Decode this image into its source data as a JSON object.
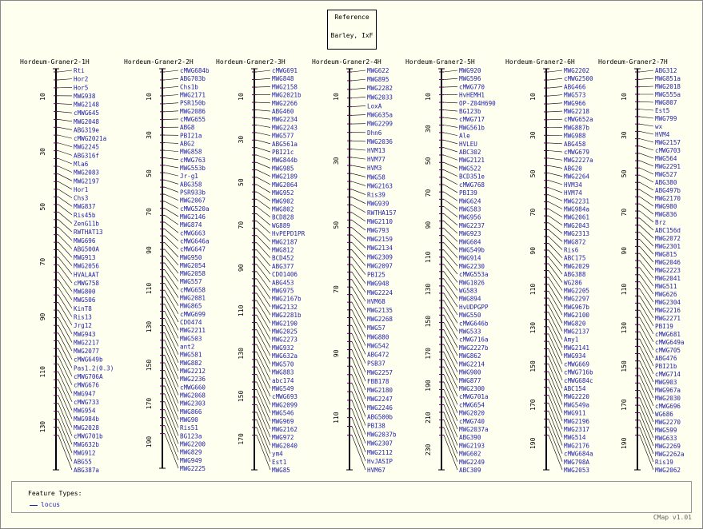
{
  "reference": {
    "label": "Reference",
    "map_set": "Barley, IxF"
  },
  "legend": {
    "title": "Feature Types:",
    "items": [
      {
        "label": "locus",
        "color": "#2222aa"
      }
    ]
  },
  "version": "CMap v1.01",
  "colors": {
    "feature_text": "#2222aa",
    "axis": "#000000",
    "tick": "#660066",
    "background": "#fffff0"
  },
  "chromosomes": [
    {
      "name": "Hordeum-Graner2-1H",
      "scale": {
        "ticks": [
          "10",
          "30",
          "50",
          "70",
          "90",
          "110",
          "130"
        ]
      },
      "features": [
        "Rti",
        "Hor2",
        "Hor5",
        "MWG938",
        "MWG2148",
        "cMWG645",
        "MWG2048",
        "ABG319e",
        "cMWG2021a",
        "MWG2245",
        "ABG316f",
        "Mla6",
        "MWG2083",
        "MWG2197",
        "Hor1",
        "Chs3",
        "MWG837",
        "Ris45b",
        "ZenG11b",
        "RWTHAT13",
        "MWG696",
        "ABG500A",
        "MWG913",
        "MWG2056",
        "HVALAAT",
        "cMWG758",
        "MWG800",
        "MWG506",
        "KinT8",
        "Ris13",
        "Jrg12",
        "MWG943",
        "MWG2217",
        "MWG2077",
        "cMWG649b",
        "Pas1.2(0.3)",
        "cMWG706A",
        "cMWG676",
        "MWG947",
        "cMWG733",
        "MWG954",
        "MWG984b",
        "MWG2028",
        "cMWG701b",
        "MWG632b",
        "MWG912",
        "ABG55",
        "ABG387a"
      ]
    },
    {
      "name": "Hordeum-Graner2-2H",
      "scale": {
        "ticks": [
          "10",
          "30",
          "50",
          "70",
          "90",
          "110",
          "130",
          "150",
          "170",
          "190"
        ]
      },
      "features": [
        "cMWG684b",
        "ABG703b",
        "Chs1b",
        "MWG2171",
        "PSR150b",
        "MWG2086",
        "cMWG655",
        "ABG8",
        "PBI21a",
        "ABG2",
        "MWG858",
        "cMWG763",
        "MWG553b",
        "Jr-g1",
        "ABG358",
        "PSR933b",
        "MWG2067",
        "cMWG520a",
        "MWG2146",
        "MWG874",
        "cMWG663",
        "cMWG646a",
        "cMWG647",
        "MWG950",
        "MWG2054",
        "MWG2058",
        "MWG557",
        "cMWG658",
        "MWG2081",
        "MWG865",
        "cMWG699",
        "CDO474",
        "MWG2211",
        "MWG503",
        "ant2",
        "MWG581",
        "MWG882",
        "MWG2212",
        "MWG2236",
        "cMWG660",
        "MWG2068",
        "MWG2303",
        "MWG866",
        "MWG90",
        "Ris51",
        "BG123a",
        "MWG2200",
        "MWG829",
        "MWG949",
        "MWG2225"
      ]
    },
    {
      "name": "Hordeum-Graner2-3H",
      "scale": {
        "ticks": [
          "10",
          "30",
          "50",
          "70",
          "90",
          "110",
          "130",
          "150",
          "170"
        ]
      },
      "features": [
        "cMWG691",
        "MWG848",
        "MWG2158",
        "MWG2021b",
        "MWG2266",
        "ABG460",
        "MWG2234",
        "MWG2243",
        "MWG577",
        "ABG561a",
        "PBI21c",
        "MWG844b",
        "MWG985",
        "MWG2189",
        "MWG2064",
        "MWG952",
        "MWG902",
        "MWG802",
        "BCD828",
        "WG889",
        "HvPEPD1PR",
        "MWG2187",
        "MWG812",
        "BCD452",
        "ABG377",
        "CDO1406",
        "ABG453",
        "MWG975",
        "MWG2167b",
        "MWG2132",
        "MWG2281b",
        "MWG2190",
        "MWG2025",
        "MWG2273",
        "MWG932",
        "MWG632a",
        "MWG570",
        "MWG883",
        "abc174",
        "MWG549",
        "cMWG693",
        "MWG2099",
        "MWG546",
        "MWG969",
        "MWG2162",
        "MWG972",
        "MWG2040",
        "ym4",
        "Est1",
        "MWG85"
      ]
    },
    {
      "name": "Hordeum-Graner2-4H",
      "scale": {
        "ticks": [
          "10",
          "30",
          "50",
          "70",
          "90",
          "110"
        ]
      },
      "features": [
        "MWG622",
        "MWG895",
        "MWG2282",
        "MWG2033",
        "LoxA",
        "MWG635a",
        "MWG2299",
        "Dhn6",
        "MWG2036",
        "HVM13",
        "HVM77",
        "HVM3",
        "MWG58",
        "MWG2163",
        "Ris39",
        "MWG939",
        "RWTHA157",
        "MWG2110",
        "MWG793",
        "MWG2159",
        "MWG2134",
        "MWG2309",
        "MWG2097",
        "PBI25",
        "MWG948",
        "MWG2224",
        "HVM68",
        "MWG2135",
        "MWG2268",
        "MWG57",
        "MWG880",
        "MWG542",
        "ABG472",
        "PSB37",
        "MWG2257",
        "FBB178",
        "MWG2180",
        "MWG2247",
        "MWG2246",
        "ABG500b",
        "PBI38",
        "MWG2037b",
        "MWG2307",
        "MWG2112",
        "HvJASIP",
        "HVM67"
      ]
    },
    {
      "name": "Hordeum-Graner2-5H",
      "scale": {
        "ticks": [
          "10",
          "30",
          "50",
          "70",
          "90",
          "110",
          "130",
          "150",
          "170",
          "190",
          "210",
          "230"
        ]
      },
      "features": [
        "MWG920",
        "MWG596",
        "cMWG770",
        "HvHEMH1",
        "OP-Z04H690",
        "BG123b",
        "cMWG717",
        "MWG561b",
        "Ale",
        "HVLEU",
        "ABC302",
        "MWG2121",
        "MWG522",
        "BCD351e",
        "cMWG768",
        "PBI39",
        "MWG624",
        "MWG583",
        "MWG956",
        "MWG2237",
        "MWG923",
        "MWG604",
        "MWG549b",
        "MWG914",
        "MWG2230",
        "cMWG553a",
        "MWG1026",
        "WG583",
        "MWG894",
        "HvUDPGPP",
        "MWG550",
        "cMWG646b",
        "MWG533",
        "cMWG716a",
        "MWG2227b",
        "MWG862",
        "MWG2214",
        "MWG900",
        "MWG877",
        "MWG2300",
        "cMWG701a",
        "cMWG654",
        "MWG2020",
        "cMWG740",
        "MWG2037a",
        "ABG390",
        "MWG2193",
        "MWG602",
        "MWG2249",
        "ABC309"
      ]
    },
    {
      "name": "Hordeum-Graner2-6H",
      "scale": {
        "ticks": [
          "10",
          "30",
          "50",
          "70",
          "90",
          "110",
          "130",
          "150",
          "170",
          "190"
        ]
      },
      "features": [
        "MWG2202",
        "cMWG2500",
        "ABG466",
        "MWG573",
        "MWG966",
        "MWG2218",
        "cMWG652a",
        "MWG887b",
        "MWG988",
        "ABG458",
        "cMWG679",
        "MWG2227a",
        "ABG20",
        "MWG2264",
        "HVM34",
        "HVM74",
        "MWG2231",
        "MWG984a",
        "MWG2061",
        "MWG2043",
        "MWG2313",
        "MWG872",
        "Ris6",
        "ABC175",
        "MWG2029",
        "ABG388",
        "WG286",
        "MWG2205",
        "MWG2297",
        "MWG967b",
        "MWG2100",
        "MWG820",
        "MWG2137",
        "Amy1",
        "MWG2141",
        "MWG934",
        "cMWG669",
        "cMWG716b",
        "cMWG684c",
        "ABC154",
        "MWG2220",
        "MWG549a",
        "MWG911",
        "MWG2196",
        "MWG2317",
        "MWG514",
        "MWG2176",
        "cMWG684a",
        "MWG798A",
        "MWG2053"
      ]
    },
    {
      "name": "Hordeum-Graner2-7H",
      "scale": {
        "ticks": [
          "10",
          "30",
          "50",
          "70",
          "90",
          "110",
          "130",
          "150",
          "170",
          "190"
        ]
      },
      "features": [
        "ABG312",
        "MWG851a",
        "MWG2018",
        "MWG555a",
        "MWG807",
        "Est5",
        "MWG799",
        "wx",
        "HVM4",
        "MWG2157",
        "cMWG703",
        "MWG564",
        "MWG2291",
        "MWG527",
        "ABG380",
        "ABG497b",
        "MWG2170",
        "MWG980",
        "MWG836",
        "Brz",
        "ABC156d",
        "MWG2072",
        "MWG2301",
        "MWG815",
        "MWG2046",
        "MWG2223",
        "MWG2041",
        "MWG511",
        "MWG626",
        "MWG2304",
        "MWG2216",
        "MWG2271",
        "PBI19",
        "cMWG681",
        "cMWG649a",
        "cMWG705",
        "ABG476",
        "PBI21b",
        "cMWG714",
        "MWG903",
        "MWG967a",
        "MWG2030",
        "cMWG696",
        "WG686",
        "MWG2270",
        "MWG599",
        "MWG633",
        "MWG2269",
        "MWG2262a",
        "Ris19",
        "MWG2062"
      ]
    }
  ]
}
